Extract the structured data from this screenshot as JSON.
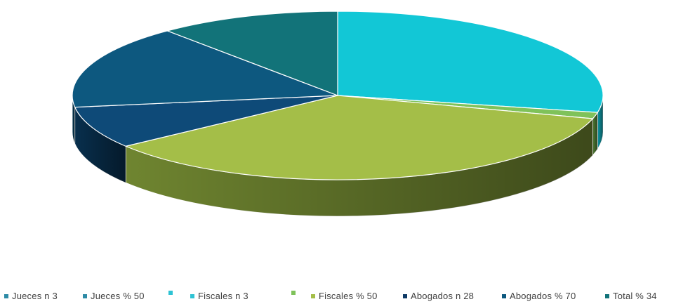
{
  "chart_data": {
    "type": "pie",
    "style": "3d-exploded-none",
    "slices": [
      {
        "value": 28,
        "color": "#12C7D6",
        "side": "#0E97A3"
      },
      {
        "value": 1.2,
        "color": "#7FC25A",
        "side": "#4E7A33"
      },
      {
        "value": 35,
        "color": "#A4BE48",
        "side": "#6F8530"
      },
      {
        "value": 8,
        "color": "#0E4A78",
        "side": "#082F4D"
      },
      {
        "value": 16,
        "color": "#0D587F",
        "side": "#083A55"
      },
      {
        "value": 11,
        "color": "#127379",
        "side": "#0B4B4F"
      }
    ],
    "legend_position": "bottom",
    "legend": [
      {
        "label": "Jueces n 3",
        "color": "#2E8BA6"
      },
      {
        "label": "Jueces % 50",
        "color": "#2E8BA6"
      },
      {
        "label": "",
        "color": "#2EC3D4"
      },
      {
        "label": "Fiscales n 3",
        "color": "#2EC3D4"
      },
      {
        "label": "",
        "color": "#7FC25A"
      },
      {
        "label": "Fiscales % 50",
        "color": "#A4BE48"
      },
      {
        "label": "Abogados n 28",
        "color": "#0E3A66"
      },
      {
        "label": "Abogados % 70",
        "color": "#0D587F"
      },
      {
        "label": "Total % 34",
        "color": "#127379"
      }
    ]
  }
}
